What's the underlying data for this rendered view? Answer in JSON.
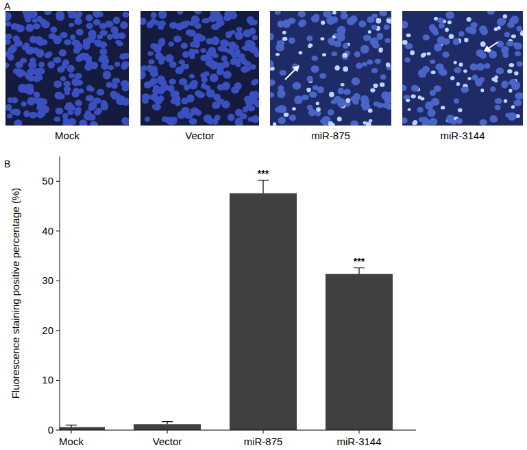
{
  "panel_a": {
    "label": "A",
    "captions": [
      "Mock",
      "Vector",
      "miR-875",
      "miR-3144"
    ]
  },
  "panel_b": {
    "label": "B"
  },
  "chart_data": {
    "type": "bar",
    "y_label": "Fluorescence staining positive percentage (%)",
    "categories": [
      "Mock",
      "Vector",
      "miR-875",
      "miR-3144"
    ],
    "values": [
      0.6,
      1.2,
      47.6,
      31.4
    ],
    "errors": [
      0.4,
      0.5,
      2.6,
      1.2
    ],
    "color": "#404040",
    "ylim": [
      0,
      55
    ],
    "yticks": [
      0,
      10,
      20,
      30,
      40,
      50
    ],
    "grid": false,
    "annotations": [
      {
        "text": "***",
        "x": "miR-875"
      },
      {
        "text": "***",
        "x": "miR-3144"
      }
    ]
  }
}
